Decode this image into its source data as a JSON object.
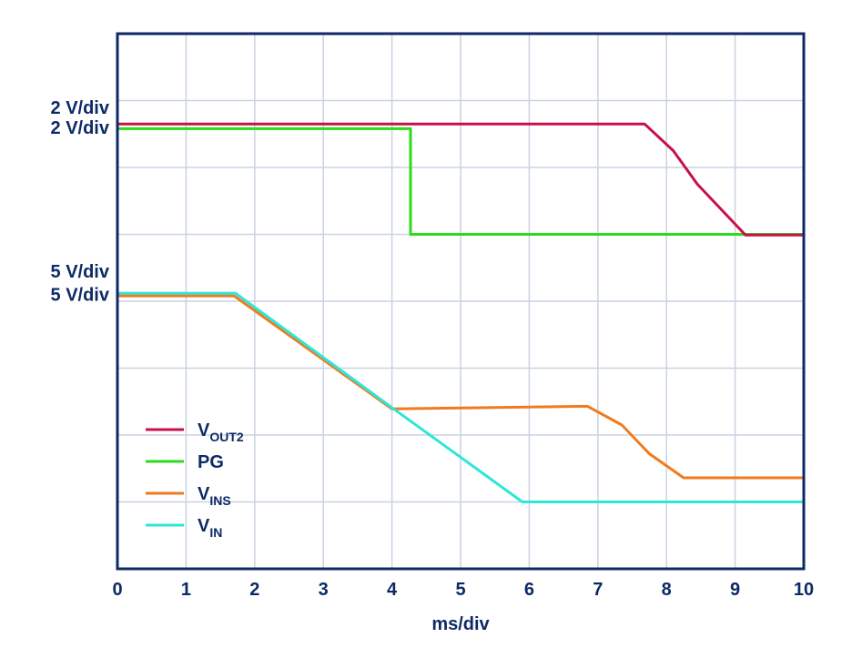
{
  "chart_data": {
    "type": "line",
    "xlabel": "ms/div",
    "x_ticks": [
      0,
      1,
      2,
      3,
      4,
      5,
      6,
      7,
      8,
      9,
      10
    ],
    "xlim": [
      0,
      10
    ],
    "ylim": [
      0,
      8
    ],
    "grid": true,
    "scale_labels": [
      {
        "text": "2 V/div",
        "channel": "VOUT2",
        "level": 6.9
      },
      {
        "text": "2 V/div",
        "channel": "PG",
        "level": 6.6
      },
      {
        "text": "5 V/div",
        "channel": "VINS",
        "level": 4.45
      },
      {
        "text": "5 V/div",
        "channel": "VIN",
        "level": 4.1
      }
    ],
    "legend": {
      "position": "bottom-left",
      "entries": [
        {
          "main": "V",
          "sub": "OUT2",
          "series": "VOUT2"
        },
        {
          "main": "PG",
          "sub": "",
          "series": "PG"
        },
        {
          "main": "V",
          "sub": "INS",
          "series": "VINS"
        },
        {
          "main": "V",
          "sub": "IN",
          "series": "VIN"
        }
      ]
    },
    "series": [
      {
        "name": "VOUT2",
        "color": "#c8104a",
        "x": [
          0,
          7.68,
          8.1,
          8.45,
          9.15,
          10
        ],
        "y": [
          6.65,
          6.65,
          6.25,
          5.75,
          4.99,
          4.99
        ]
      },
      {
        "name": "PG",
        "color": "#2cdc1c",
        "x": [
          0,
          4.27,
          4.27,
          10
        ],
        "y": [
          6.58,
          6.58,
          5.0,
          5.0
        ]
      },
      {
        "name": "VINS",
        "color": "#f07a1e",
        "x": [
          0,
          1.7,
          4.0,
          6.85,
          7.35,
          7.75,
          8.25,
          10
        ],
        "y": [
          4.08,
          4.08,
          2.39,
          2.43,
          2.15,
          1.72,
          1.36,
          1.36
        ]
      },
      {
        "name": "VIN",
        "color": "#2ee6d8",
        "x": [
          0,
          1.72,
          4.0,
          5.9,
          10
        ],
        "y": [
          4.12,
          4.12,
          2.41,
          1.0,
          1.0
        ]
      }
    ]
  }
}
